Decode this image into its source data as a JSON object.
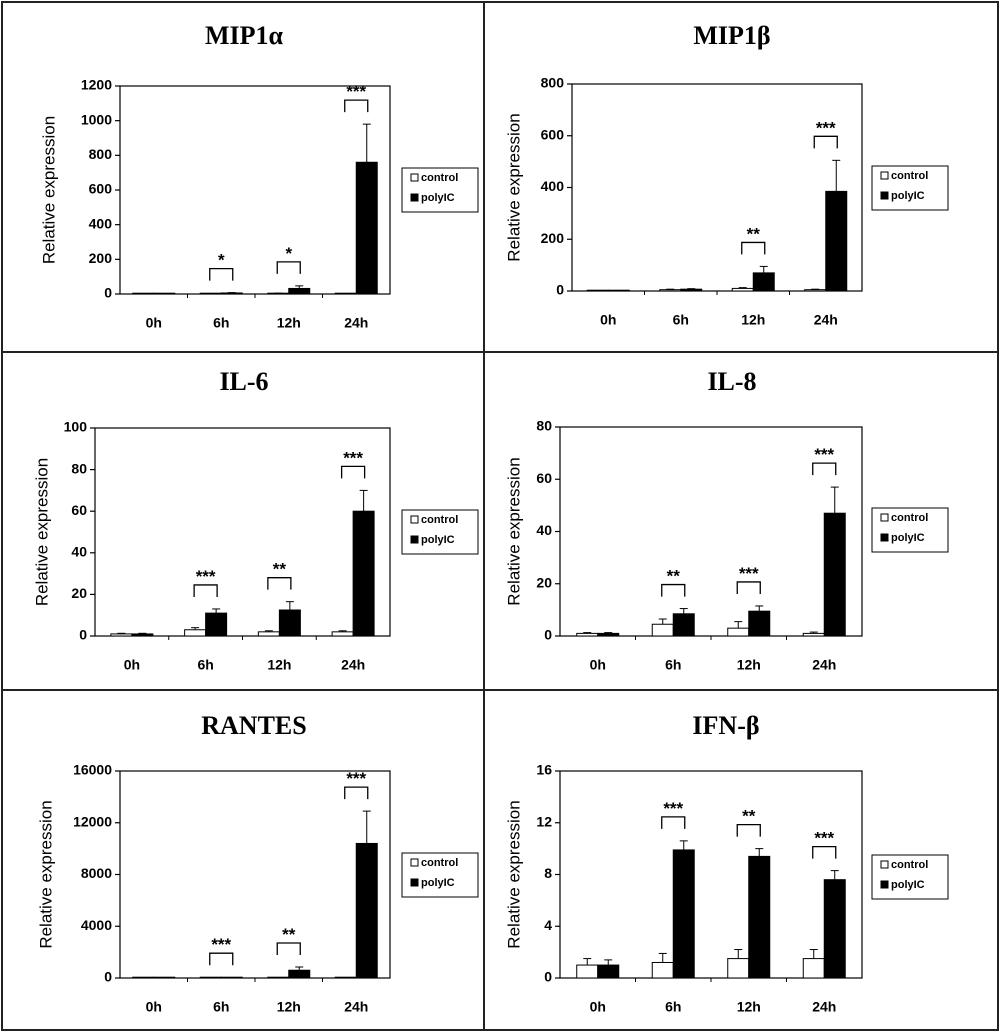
{
  "legend": [
    "control",
    "polyIC"
  ],
  "colors": {
    "control": "#ffffff",
    "polyIC": "#000000"
  },
  "chart_data": [
    {
      "type": "bar",
      "title": "MIP1α",
      "ylabel": "Relative expression",
      "categories": [
        "0h",
        "6h",
        "12h",
        "24h"
      ],
      "ylim": [
        0,
        1200
      ],
      "yticks": [
        "0",
        "200",
        "400",
        "600",
        "800",
        "1000",
        "1200"
      ],
      "series": [
        {
          "name": "control",
          "values": [
            1,
            2,
            3,
            2
          ],
          "errors": [
            0,
            1,
            2,
            1
          ]
        },
        {
          "name": "polyIC",
          "values": [
            1,
            6,
            32,
            760
          ],
          "errors": [
            0,
            2,
            15,
            220
          ]
        }
      ],
      "significance": [
        "",
        "*",
        "*",
        "***"
      ],
      "legend_position": "right"
    },
    {
      "type": "bar",
      "title": "MIP1β",
      "ylabel": "Relative expression",
      "categories": [
        "0h",
        "6h",
        "12h",
        "24h"
      ],
      "ylim": [
        0,
        800
      ],
      "yticks": [
        "0",
        "200",
        "400",
        "600",
        "800"
      ],
      "series": [
        {
          "name": "control",
          "values": [
            1,
            5,
            10,
            5
          ],
          "errors": [
            0,
            2,
            3,
            2
          ]
        },
        {
          "name": "polyIC",
          "values": [
            1,
            7,
            70,
            385
          ],
          "errors": [
            0,
            2,
            25,
            120
          ]
        }
      ],
      "significance": [
        "",
        "",
        "**",
        "***"
      ],
      "legend_position": "right"
    },
    {
      "type": "bar",
      "title": "IL-6",
      "ylabel": "Relative expression",
      "categories": [
        "0h",
        "6h",
        "12h",
        "24h"
      ],
      "ylim": [
        0,
        100
      ],
      "yticks": [
        "0",
        "20",
        "40",
        "60",
        "80",
        "100"
      ],
      "series": [
        {
          "name": "control",
          "values": [
            1,
            3,
            2,
            2
          ],
          "errors": [
            0.3,
            1,
            0.5,
            0.5
          ]
        },
        {
          "name": "polyIC",
          "values": [
            1,
            11,
            12.5,
            60
          ],
          "errors": [
            0.3,
            2,
            4,
            10
          ]
        }
      ],
      "significance": [
        "",
        "***",
        "**",
        "***"
      ],
      "legend_position": "right"
    },
    {
      "type": "bar",
      "title": "IL-8",
      "ylabel": "Relative expression",
      "categories": [
        "0h",
        "6h",
        "12h",
        "24h"
      ],
      "ylim": [
        0,
        80
      ],
      "yticks": [
        "0",
        "20",
        "40",
        "60",
        "80"
      ],
      "series": [
        {
          "name": "control",
          "values": [
            1,
            4.5,
            3,
            1
          ],
          "errors": [
            0.3,
            2,
            2.5,
            0.5
          ]
        },
        {
          "name": "polyIC",
          "values": [
            1,
            8.5,
            9.5,
            47
          ],
          "errors": [
            0.3,
            2,
            2,
            10
          ]
        }
      ],
      "significance": [
        "",
        "**",
        "***",
        "***"
      ],
      "legend_position": "right"
    },
    {
      "type": "bar",
      "title": "RANTES",
      "ylabel": "Relative expression",
      "categories": [
        "0h",
        "6h",
        "12h",
        "24h"
      ],
      "ylim": [
        0,
        16000
      ],
      "yticks": [
        "0",
        "4000",
        "8000",
        "12000",
        "16000"
      ],
      "series": [
        {
          "name": "control",
          "values": [
            1,
            5,
            10,
            10
          ],
          "errors": [
            0,
            0,
            0,
            0
          ]
        },
        {
          "name": "polyIC",
          "values": [
            1,
            20,
            600,
            10400
          ],
          "errors": [
            0,
            5,
            250,
            2500
          ]
        }
      ],
      "significance": [
        "",
        "***",
        "**",
        "***"
      ],
      "legend_position": "right"
    },
    {
      "type": "bar",
      "title": "IFN-β",
      "ylabel": "Relative expression",
      "categories": [
        "0h",
        "6h",
        "12h",
        "24h"
      ],
      "ylim": [
        0,
        16
      ],
      "yticks": [
        "0",
        "4",
        "8",
        "12",
        "16"
      ],
      "series": [
        {
          "name": "control",
          "values": [
            1,
            1.2,
            1.5,
            1.5
          ],
          "errors": [
            0.5,
            0.7,
            0.7,
            0.7
          ]
        },
        {
          "name": "polyIC",
          "values": [
            1,
            9.9,
            9.4,
            7.6
          ],
          "errors": [
            0.4,
            0.7,
            0.6,
            0.7
          ]
        }
      ],
      "significance": [
        "",
        "***",
        "**",
        "***"
      ],
      "legend_position": "right"
    }
  ]
}
